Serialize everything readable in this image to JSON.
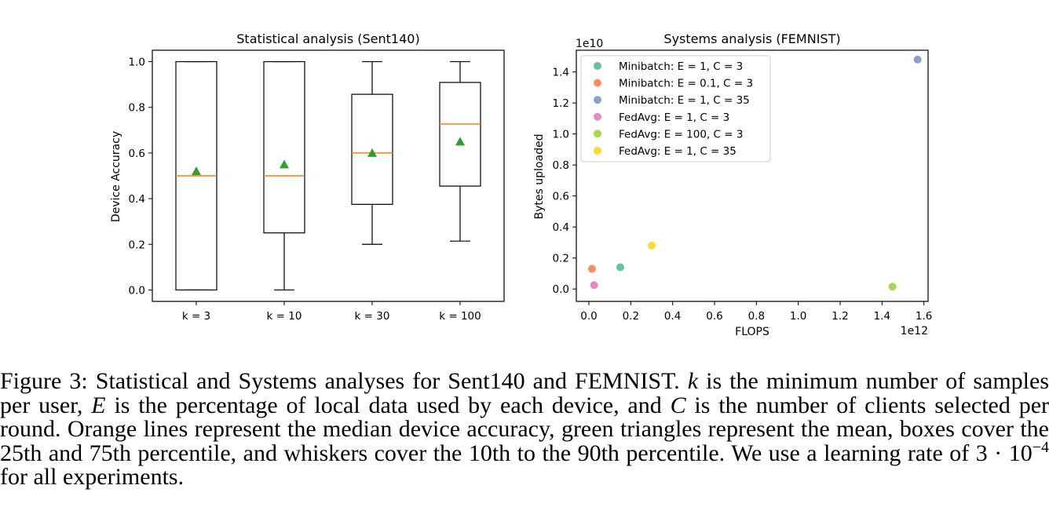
{
  "left_chart": {
    "title": "Statistical analysis (Sent140)",
    "ylabel": "Device Accuracy"
  },
  "right_chart": {
    "title": "Systems analysis (FEMNIST)",
    "xlabel": "FLOPS",
    "ylabel": "Bytes uploaded",
    "x_multiplier": "1e12",
    "y_multiplier": "1e10"
  },
  "chart_data": [
    {
      "type": "box",
      "title": "Statistical analysis (Sent140)",
      "xlabel": "",
      "ylabel": "Device Accuracy",
      "ylim": [
        -0.05,
        1.05
      ],
      "yticks": [
        "0.0",
        "0.2",
        "0.4",
        "0.6",
        "0.8",
        "1.0"
      ],
      "categories": [
        "k = 3",
        "k = 10",
        "k = 30",
        "k = 100"
      ],
      "boxes": [
        {
          "whisker_low": 0.0,
          "q1": 0.0,
          "median": 0.5,
          "q3": 1.0,
          "whisker_high": 1.0,
          "mean": 0.52
        },
        {
          "whisker_low": 0.0,
          "q1": 0.25,
          "median": 0.5,
          "q3": 1.0,
          "whisker_high": 1.0,
          "mean": 0.55
        },
        {
          "whisker_low": 0.2,
          "q1": 0.375,
          "median": 0.6,
          "q3": 0.857,
          "whisker_high": 1.0,
          "mean": 0.6
        },
        {
          "whisker_low": 0.214,
          "q1": 0.455,
          "median": 0.727,
          "q3": 0.909,
          "whisker_high": 1.0,
          "mean": 0.65
        }
      ],
      "colors": {
        "box": "#000000",
        "median": "#ff7f0e",
        "mean": "#2ca02c"
      },
      "grid": false
    },
    {
      "type": "scatter",
      "title": "Systems analysis (FEMNIST)",
      "xlabel": "FLOPS",
      "ylabel": "Bytes uploaded",
      "x_scale_label": "1e12",
      "y_scale_label": "1e10",
      "xlim": [
        -0.06,
        1.62
      ],
      "ylim": [
        -0.08,
        1.54
      ],
      "xticks": [
        "0.0",
        "0.2",
        "0.4",
        "0.6",
        "0.8",
        "1.0",
        "1.2",
        "1.4",
        "1.6"
      ],
      "yticks": [
        "0.0",
        "0.2",
        "0.4",
        "0.6",
        "0.8",
        "1.0",
        "1.2",
        "1.4"
      ],
      "legend_position": "top-left",
      "grid": false,
      "series": [
        {
          "name": "Minibatch: E = 1, C = 3",
          "color": "#66c2a5",
          "x": 0.15,
          "y": 0.14
        },
        {
          "name": "Minibatch: E = 0.1, C = 3",
          "color": "#fc8d62",
          "x": 0.015,
          "y": 0.13
        },
        {
          "name": "Minibatch: E = 1, C = 35",
          "color": "#8da0cb",
          "x": 1.57,
          "y": 1.48
        },
        {
          "name": "FedAvg: E = 1, C = 3",
          "color": "#e78ac3",
          "x": 0.025,
          "y": 0.025
        },
        {
          "name": "FedAvg: E = 100, C = 3",
          "color": "#a6d854",
          "x": 1.45,
          "y": 0.015
        },
        {
          "name": "FedAvg: E = 1, C = 35",
          "color": "#ffd92f",
          "x": 0.3,
          "y": 0.28
        }
      ]
    }
  ],
  "caption": {
    "label": "Figure 3:",
    "text1": " Statistical and Systems analyses for Sent140 and FEMNIST. ",
    "k": "k",
    "text2": " is the minimum number of samples per user, ",
    "E": "E",
    "text3": " is the percentage of local data used by each device, and ",
    "C": "C",
    "text4": " is the number of clients selected per round. Orange lines represent the median device accuracy, green triangles represent the mean, boxes cover the 25th and 75th percentile, and whiskers cover the 10th to the 90th percentile. We use a learning rate of ",
    "lr_base": "3 · 10",
    "lr_exp": "−4",
    "text5": " for all experiments."
  }
}
